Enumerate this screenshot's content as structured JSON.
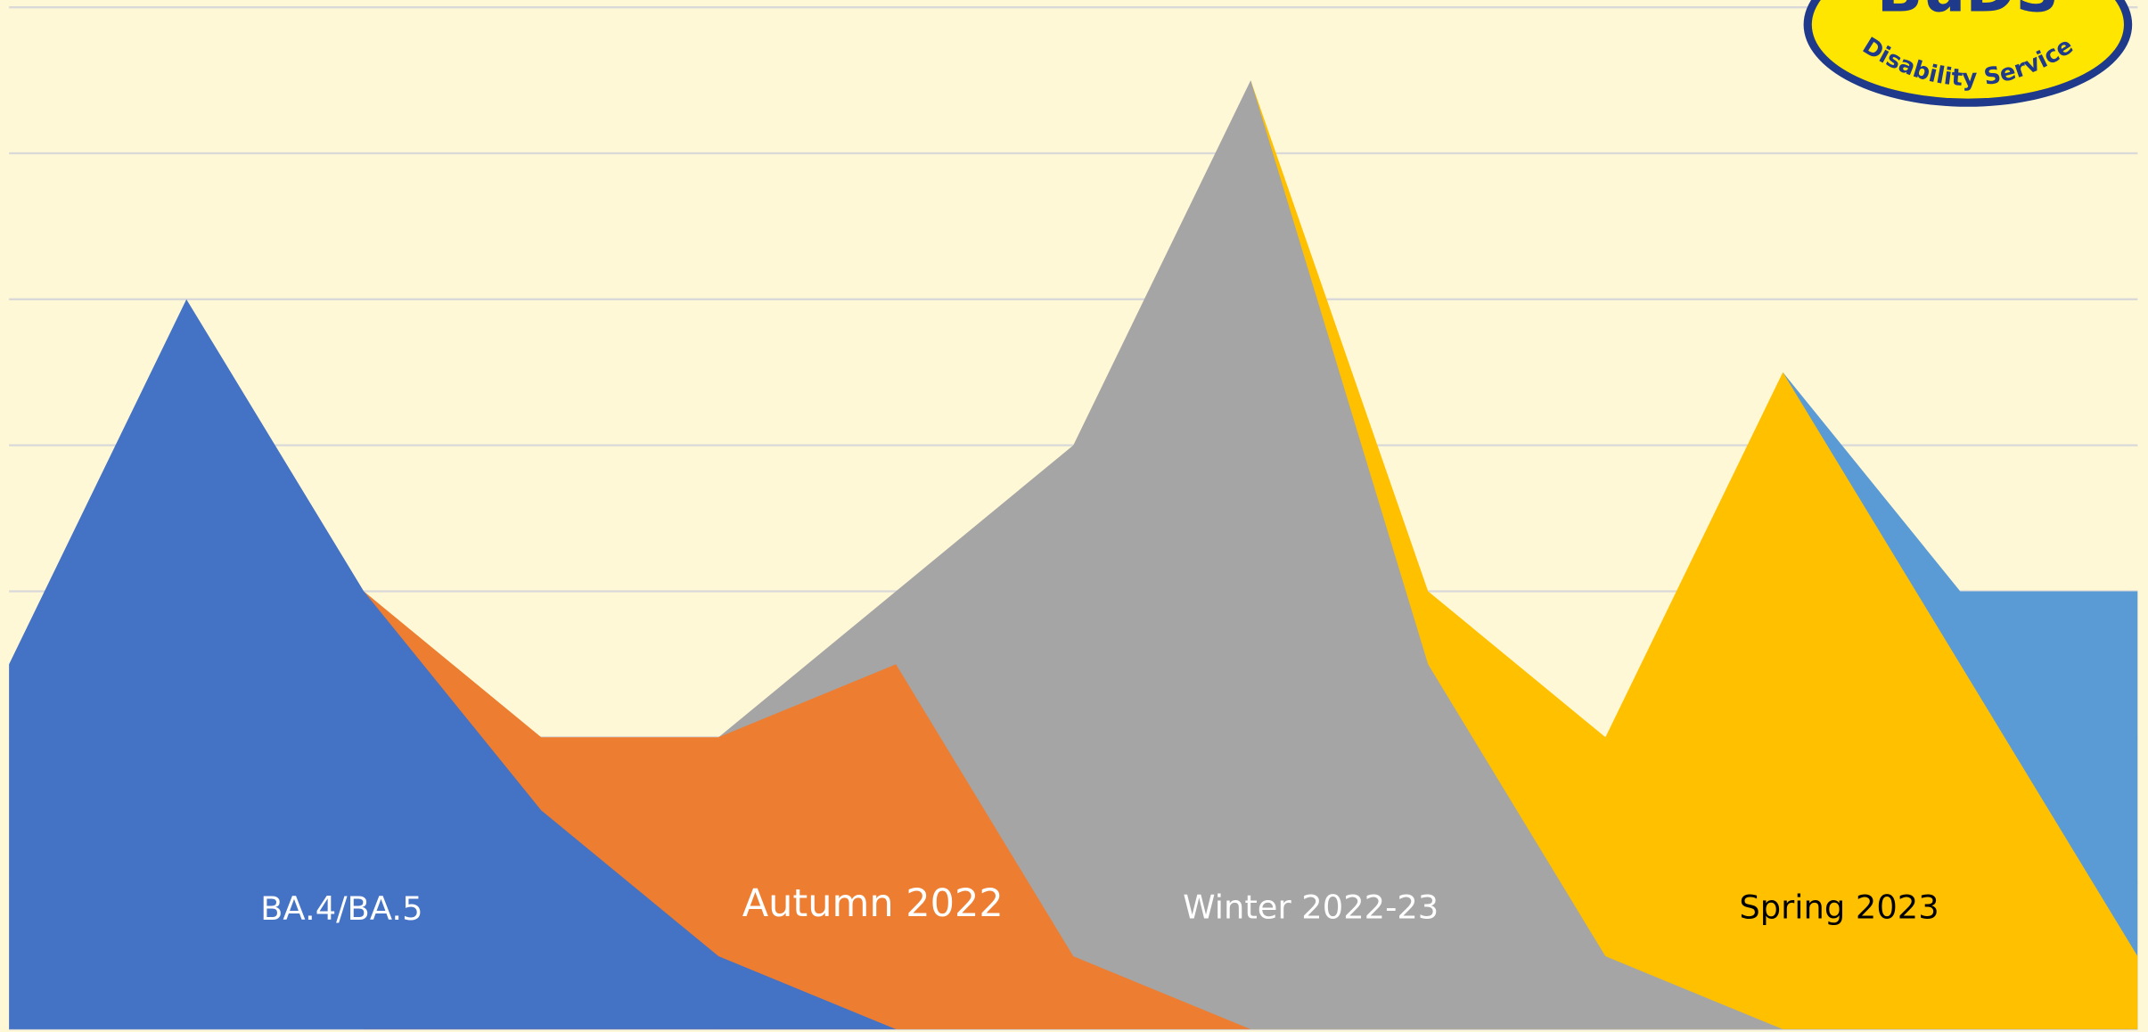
{
  "chart_data": {
    "type": "area",
    "categories": [
      null,
      null,
      null,
      null,
      null,
      null,
      null,
      null,
      null,
      null,
      null,
      null,
      null
    ],
    "series": [
      {
        "name": "BA.4/BA.5",
        "color": "#4472c4",
        "label_color": "#ffffff",
        "values": [
          2.5,
          5,
          3,
          1.5,
          0.5,
          0,
          null,
          null,
          null,
          null,
          null,
          null,
          null
        ]
      },
      {
        "name": "Autumn 2022",
        "color": "#ed7d31",
        "label_color": "#ffffff",
        "values": [
          null,
          null,
          3,
          2,
          2,
          2.5,
          0.5,
          0,
          null,
          null,
          null,
          null,
          null
        ]
      },
      {
        "name": "Winter 2022-23",
        "color": "#a5a5a5",
        "label_color": "#ffffff",
        "values": [
          null,
          null,
          null,
          null,
          2,
          3,
          4,
          6.5,
          2.5,
          0.5,
          0,
          null,
          null
        ]
      },
      {
        "name": "Spring 2023",
        "color": "#ffc000",
        "label_color": "#000000",
        "values": [
          null,
          null,
          null,
          null,
          null,
          null,
          null,
          6.5,
          3,
          2,
          4.5,
          2.5,
          0.5
        ]
      },
      {
        "color": "#5b9bd5",
        "values": [
          null,
          null,
          null,
          null,
          null,
          null,
          null,
          null,
          null,
          null,
          4.5,
          3,
          3
        ]
      }
    ],
    "ylim": [
      0,
      7.05
    ],
    "yticks": [
      0,
      1,
      2,
      3,
      4,
      5,
      6,
      7
    ],
    "grid": true
  },
  "logo": {
    "title": "BuDS",
    "subtitle": "Disability Service"
  }
}
